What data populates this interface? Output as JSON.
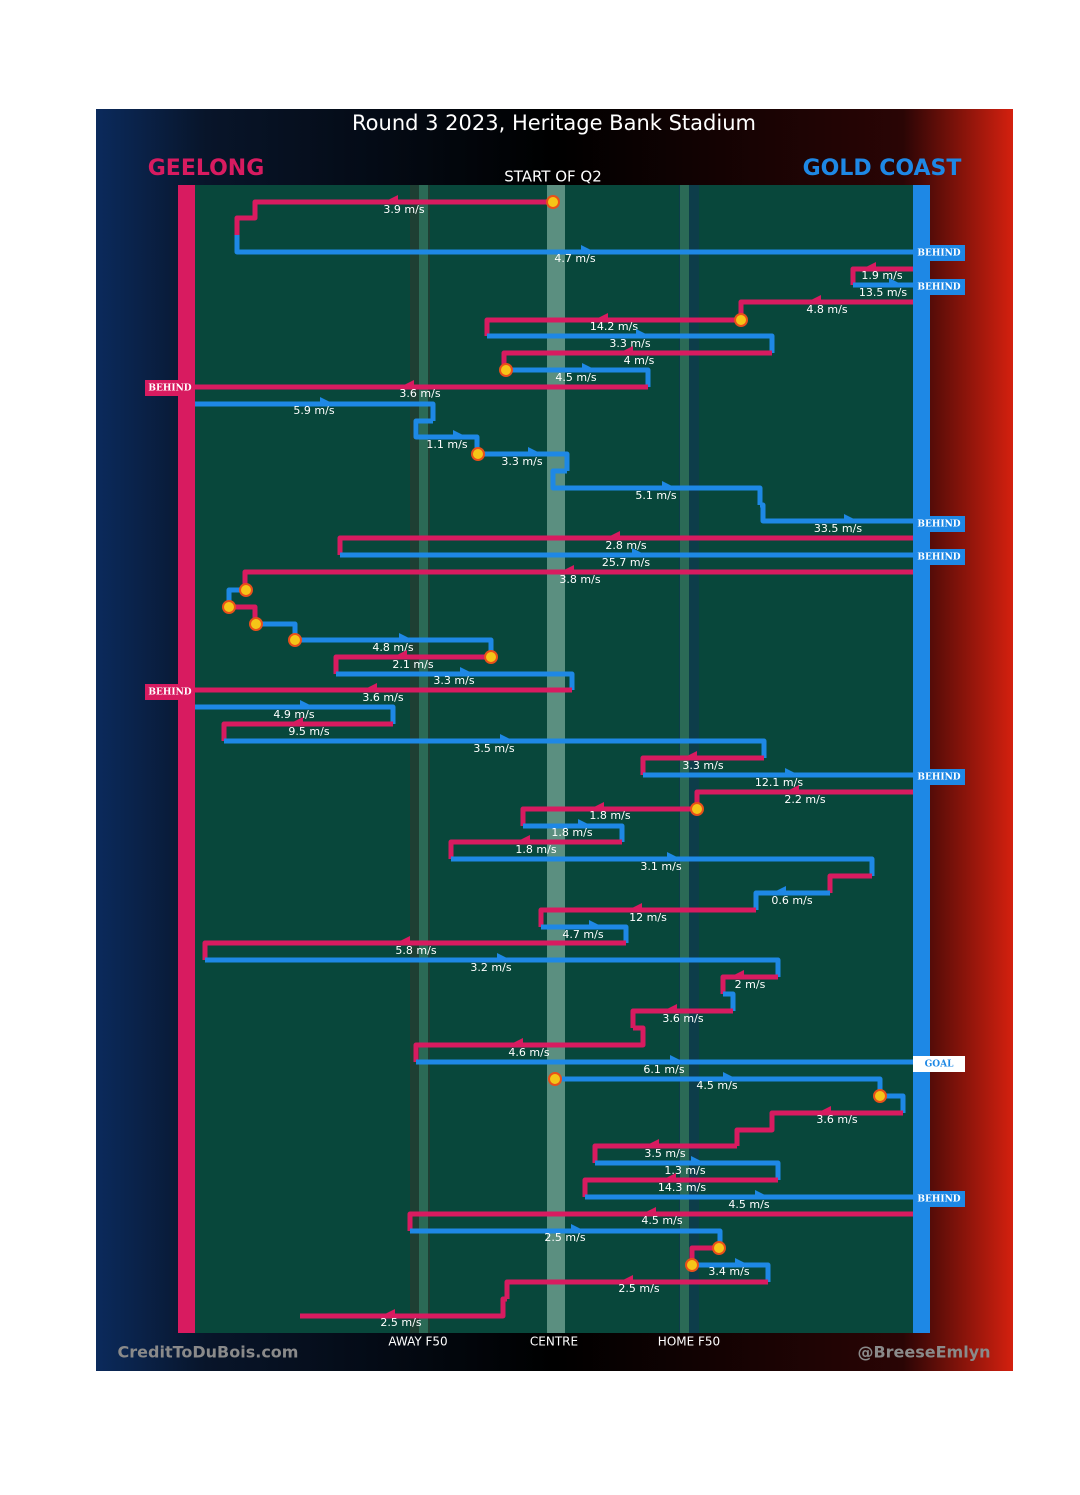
{
  "header": {
    "title": "Round 3 2023, Heritage Bank Stadium",
    "home_team": "GEELONG",
    "away_team": "GOLD COAST",
    "period": "START OF Q2"
  },
  "field_labels": [
    "AWAY F50",
    "CENTRE",
    "HOME F50"
  ],
  "footer": {
    "left": "CreditToDuBois.com",
    "right": "@BreeseEmlyn"
  },
  "outcomes": [
    "BEHIND",
    "BEHIND",
    "BEHIND",
    "BEHIND",
    "BEHIND",
    "BEHIND",
    "BEHIND",
    "GOAL",
    "BEHIND"
  ],
  "segments": [
    {
      "label": "3.9 m/s"
    },
    {
      "label": "4.7 m/s"
    },
    {
      "label": "1.9 m/s"
    },
    {
      "label": "13.5 m/s"
    },
    {
      "label": "4.8 m/s"
    },
    {
      "label": "14.2 m/s"
    },
    {
      "label": "3.3 m/s"
    },
    {
      "label": "4 m/s"
    },
    {
      "label": "4.5 m/s"
    },
    {
      "label": "3.6 m/s"
    },
    {
      "label": "5.9 m/s"
    },
    {
      "label": "1.1 m/s"
    },
    {
      "label": "3.3 m/s"
    },
    {
      "label": "5.1 m/s"
    },
    {
      "label": "33.5 m/s"
    },
    {
      "label": "2.8 m/s"
    },
    {
      "label": "25.7 m/s"
    },
    {
      "label": "3.8 m/s"
    },
    {
      "label": "4.8 m/s"
    },
    {
      "label": "2.1 m/s"
    },
    {
      "label": "3.3 m/s"
    },
    {
      "label": "3.6 m/s"
    },
    {
      "label": "4.9 m/s"
    },
    {
      "label": "9.5 m/s"
    },
    {
      "label": "3.5 m/s"
    },
    {
      "label": "3.3 m/s"
    },
    {
      "label": "12.1 m/s"
    },
    {
      "label": "2.2 m/s"
    },
    {
      "label": "1.8 m/s"
    },
    {
      "label": "1.8 m/s"
    },
    {
      "label": "1.8 m/s"
    },
    {
      "label": "3.1 m/s"
    },
    {
      "label": "0.6 m/s"
    },
    {
      "label": "12 m/s"
    },
    {
      "label": "4.7 m/s"
    },
    {
      "label": "5.8 m/s"
    },
    {
      "label": "3.2 m/s"
    },
    {
      "label": "2 m/s"
    },
    {
      "label": "3.6 m/s"
    },
    {
      "label": "4.6 m/s"
    },
    {
      "label": "6.1 m/s"
    },
    {
      "label": "4.5 m/s"
    },
    {
      "label": "3.6 m/s"
    },
    {
      "label": "3.5 m/s"
    },
    {
      "label": "1.3 m/s"
    },
    {
      "label": "14.3 m/s"
    },
    {
      "label": "4.5 m/s"
    },
    {
      "label": "4.5 m/s"
    },
    {
      "label": "2.5 m/s"
    },
    {
      "label": "3.4 m/s"
    },
    {
      "label": "2.5 m/s"
    },
    {
      "label": "2.5 m/s"
    }
  ]
}
